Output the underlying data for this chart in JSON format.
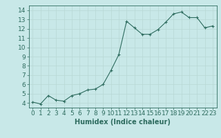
{
  "x": [
    0,
    1,
    2,
    3,
    4,
    5,
    6,
    7,
    8,
    9,
    10,
    11,
    12,
    13,
    14,
    15,
    16,
    17,
    18,
    19,
    20,
    21,
    22,
    23
  ],
  "y": [
    4.1,
    3.9,
    4.8,
    4.3,
    4.2,
    4.8,
    5.0,
    5.4,
    5.5,
    6.0,
    7.5,
    9.2,
    12.8,
    12.1,
    11.4,
    11.4,
    11.9,
    12.7,
    13.6,
    13.8,
    13.2,
    13.2,
    12.1,
    12.3
  ],
  "xlabel": "Humidex (Indice chaleur)",
  "ylim": [
    3.5,
    14.5
  ],
  "xlim": [
    -0.5,
    23.5
  ],
  "yticks": [
    4,
    5,
    6,
    7,
    8,
    9,
    10,
    11,
    12,
    13,
    14
  ],
  "xticks": [
    0,
    1,
    2,
    3,
    4,
    5,
    6,
    7,
    8,
    9,
    10,
    11,
    12,
    13,
    14,
    15,
    16,
    17,
    18,
    19,
    20,
    21,
    22,
    23
  ],
  "line_color": "#2d6b5e",
  "marker_color": "#2d6b5e",
  "bg_color": "#c8e8e8",
  "grid_color": "#b8d8d4",
  "axes_bg": "#c8e8e8",
  "tick_label_color": "#2d6b5e",
  "xlabel_color": "#2d6b5e",
  "xlabel_fontsize": 7,
  "tick_fontsize": 6.5
}
